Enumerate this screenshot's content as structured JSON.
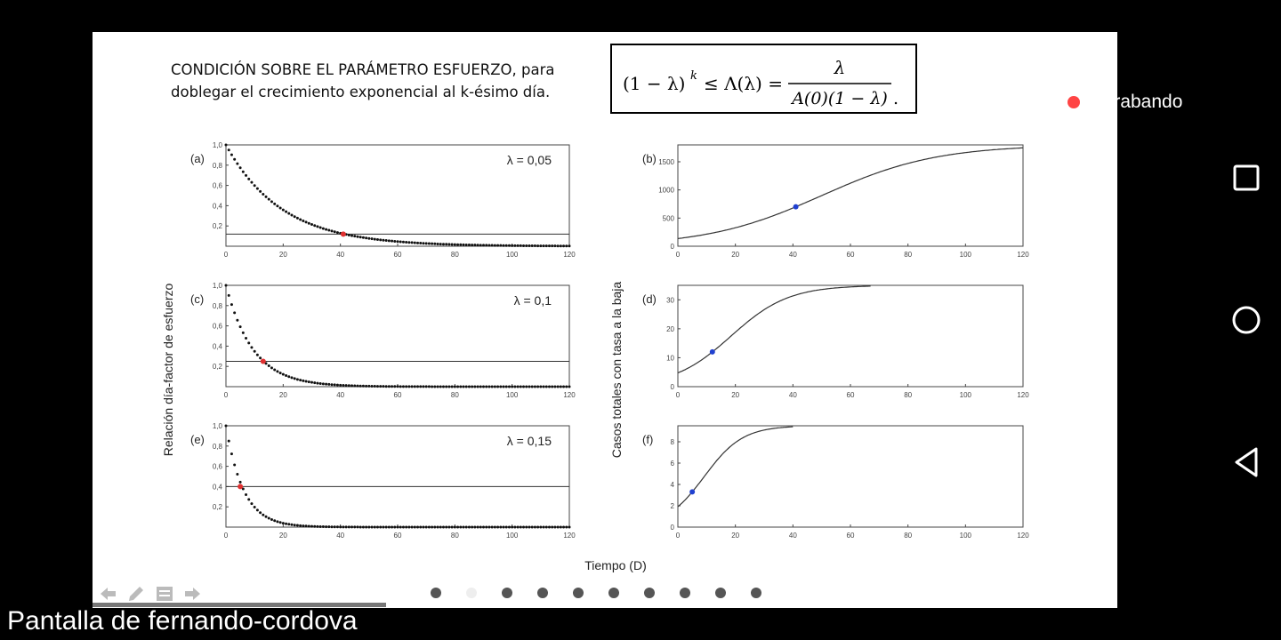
{
  "slide": {
    "description": "CONDICIÓN SOBRE EL PARÁMETRO ESFUERZO, para doblegar el crecimiento exponencial al k-ésimo día.",
    "formula": {
      "lhs": "(1 − λ)",
      "exponent": "k",
      "middle": "≤ Λ(λ) =",
      "numerator": "λ",
      "denominator": "A(0)(1 − λ)",
      "end": "."
    },
    "y_label_left": "Relación día-factor de esfuerzo",
    "y_label_right": "Casos totales con tasa a la baja",
    "x_label": "Tiempo (D)"
  },
  "chart_data": [
    {
      "type": "scatter",
      "panel": "(a)",
      "annotation": "λ = 0,05",
      "xlim": [
        0,
        120
      ],
      "ylim": [
        0,
        1
      ],
      "xticks": [
        "0",
        "20",
        "40",
        "60",
        "80",
        "100",
        "120"
      ],
      "yticks": [
        "0,2",
        "0,4",
        "0,6",
        "0,8",
        "1,0"
      ],
      "decay_rate": 0.05,
      "threshold": 0.12,
      "highlight": {
        "x": 41,
        "y": 0.12,
        "color": "#e03030"
      }
    },
    {
      "type": "line",
      "panel": "(b)",
      "xlim": [
        0,
        120
      ],
      "ylim": [
        0,
        1800
      ],
      "xticks": [
        "0",
        "20",
        "40",
        "60",
        "80",
        "100",
        "120"
      ],
      "yticks": [
        "0",
        "500",
        "1000",
        "1500"
      ],
      "logistic": {
        "K": 1800,
        "r": 0.05,
        "t0": 41,
        "y0": 700
      },
      "highlight": {
        "x": 41,
        "y": 700,
        "color": "#2040d0"
      }
    },
    {
      "type": "scatter",
      "panel": "(c)",
      "annotation": "λ = 0,1",
      "xlim": [
        0,
        120
      ],
      "ylim": [
        0,
        1
      ],
      "xticks": [
        "0",
        "20",
        "40",
        "60",
        "80",
        "100",
        "120"
      ],
      "yticks": [
        "0,2",
        "0,4",
        "0,6",
        "0,8",
        "1,0"
      ],
      "decay_rate": 0.1,
      "threshold": 0.25,
      "highlight": {
        "x": 13,
        "y": 0.25,
        "color": "#e03030"
      }
    },
    {
      "type": "line",
      "panel": "(d)",
      "xlim": [
        0,
        120
      ],
      "ylim": [
        0,
        35
      ],
      "xticks": [
        "0",
        "20",
        "40",
        "60",
        "80",
        "100",
        "120"
      ],
      "yticks": [
        "0",
        "10",
        "20",
        "30"
      ],
      "logistic": {
        "K": 35,
        "r": 0.1,
        "t0": 12,
        "y0": 12
      },
      "line_end_x": 67,
      "highlight": {
        "x": 12,
        "y": 12,
        "color": "#2040d0"
      }
    },
    {
      "type": "scatter",
      "panel": "(e)",
      "annotation": "λ = 0,15",
      "xlim": [
        0,
        120
      ],
      "ylim": [
        0,
        1
      ],
      "xticks": [
        "0",
        "20",
        "40",
        "60",
        "80",
        "100",
        "120"
      ],
      "yticks": [
        "0,2",
        "0,4",
        "0,6",
        "0,8",
        "1,0"
      ],
      "decay_rate": 0.15,
      "threshold": 0.4,
      "highlight": {
        "x": 5,
        "y": 0.4,
        "color": "#e03030"
      }
    },
    {
      "type": "line",
      "panel": "(f)",
      "xlim": [
        0,
        120
      ],
      "ylim": [
        0,
        9.5
      ],
      "xticks": [
        "0",
        "20",
        "40",
        "60",
        "80",
        "100",
        "120"
      ],
      "yticks": [
        "0",
        "2",
        "4",
        "6",
        "8"
      ],
      "logistic": {
        "K": 9.5,
        "r": 0.15,
        "t0": 5,
        "y0": 3.3
      },
      "line_end_x": 40,
      "highlight": {
        "x": 5,
        "y": 3.3,
        "color": "#2040d0"
      }
    }
  ],
  "presentation": {
    "dots_count": 10,
    "active_dot": 1
  },
  "recording": {
    "label": "Grabando"
  },
  "caption": "Pantalla de fernando-cordova",
  "icons": [
    "back-arrow-icon",
    "pen-icon",
    "notes-icon",
    "forward-arrow-icon",
    "square-nav-icon",
    "circle-nav-icon",
    "triangle-back-icon"
  ]
}
